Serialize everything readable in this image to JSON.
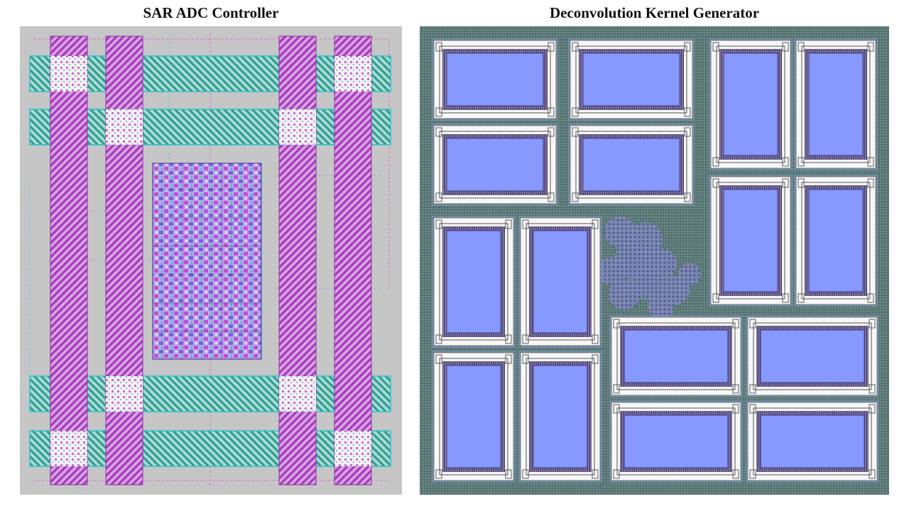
{
  "figure": {
    "left_title": "SAR ADC Controller",
    "right_title": "Deconvolution Kernel Generator"
  },
  "colors": {
    "layout_background": "#c6c6c6",
    "power_rail_magenta": "#b045c8",
    "power_rail_teal": "#2fa39a",
    "via_white": "#f4eaf4",
    "cell_logic_purple": "#7a62e0",
    "die_background": "#5f7a78",
    "macro_frame": "#f7f7f7",
    "macro_core_blue": "#8898ff",
    "macro_pins_dark": "#4a3f6b",
    "fill_cells": "#6f78a8"
  }
}
